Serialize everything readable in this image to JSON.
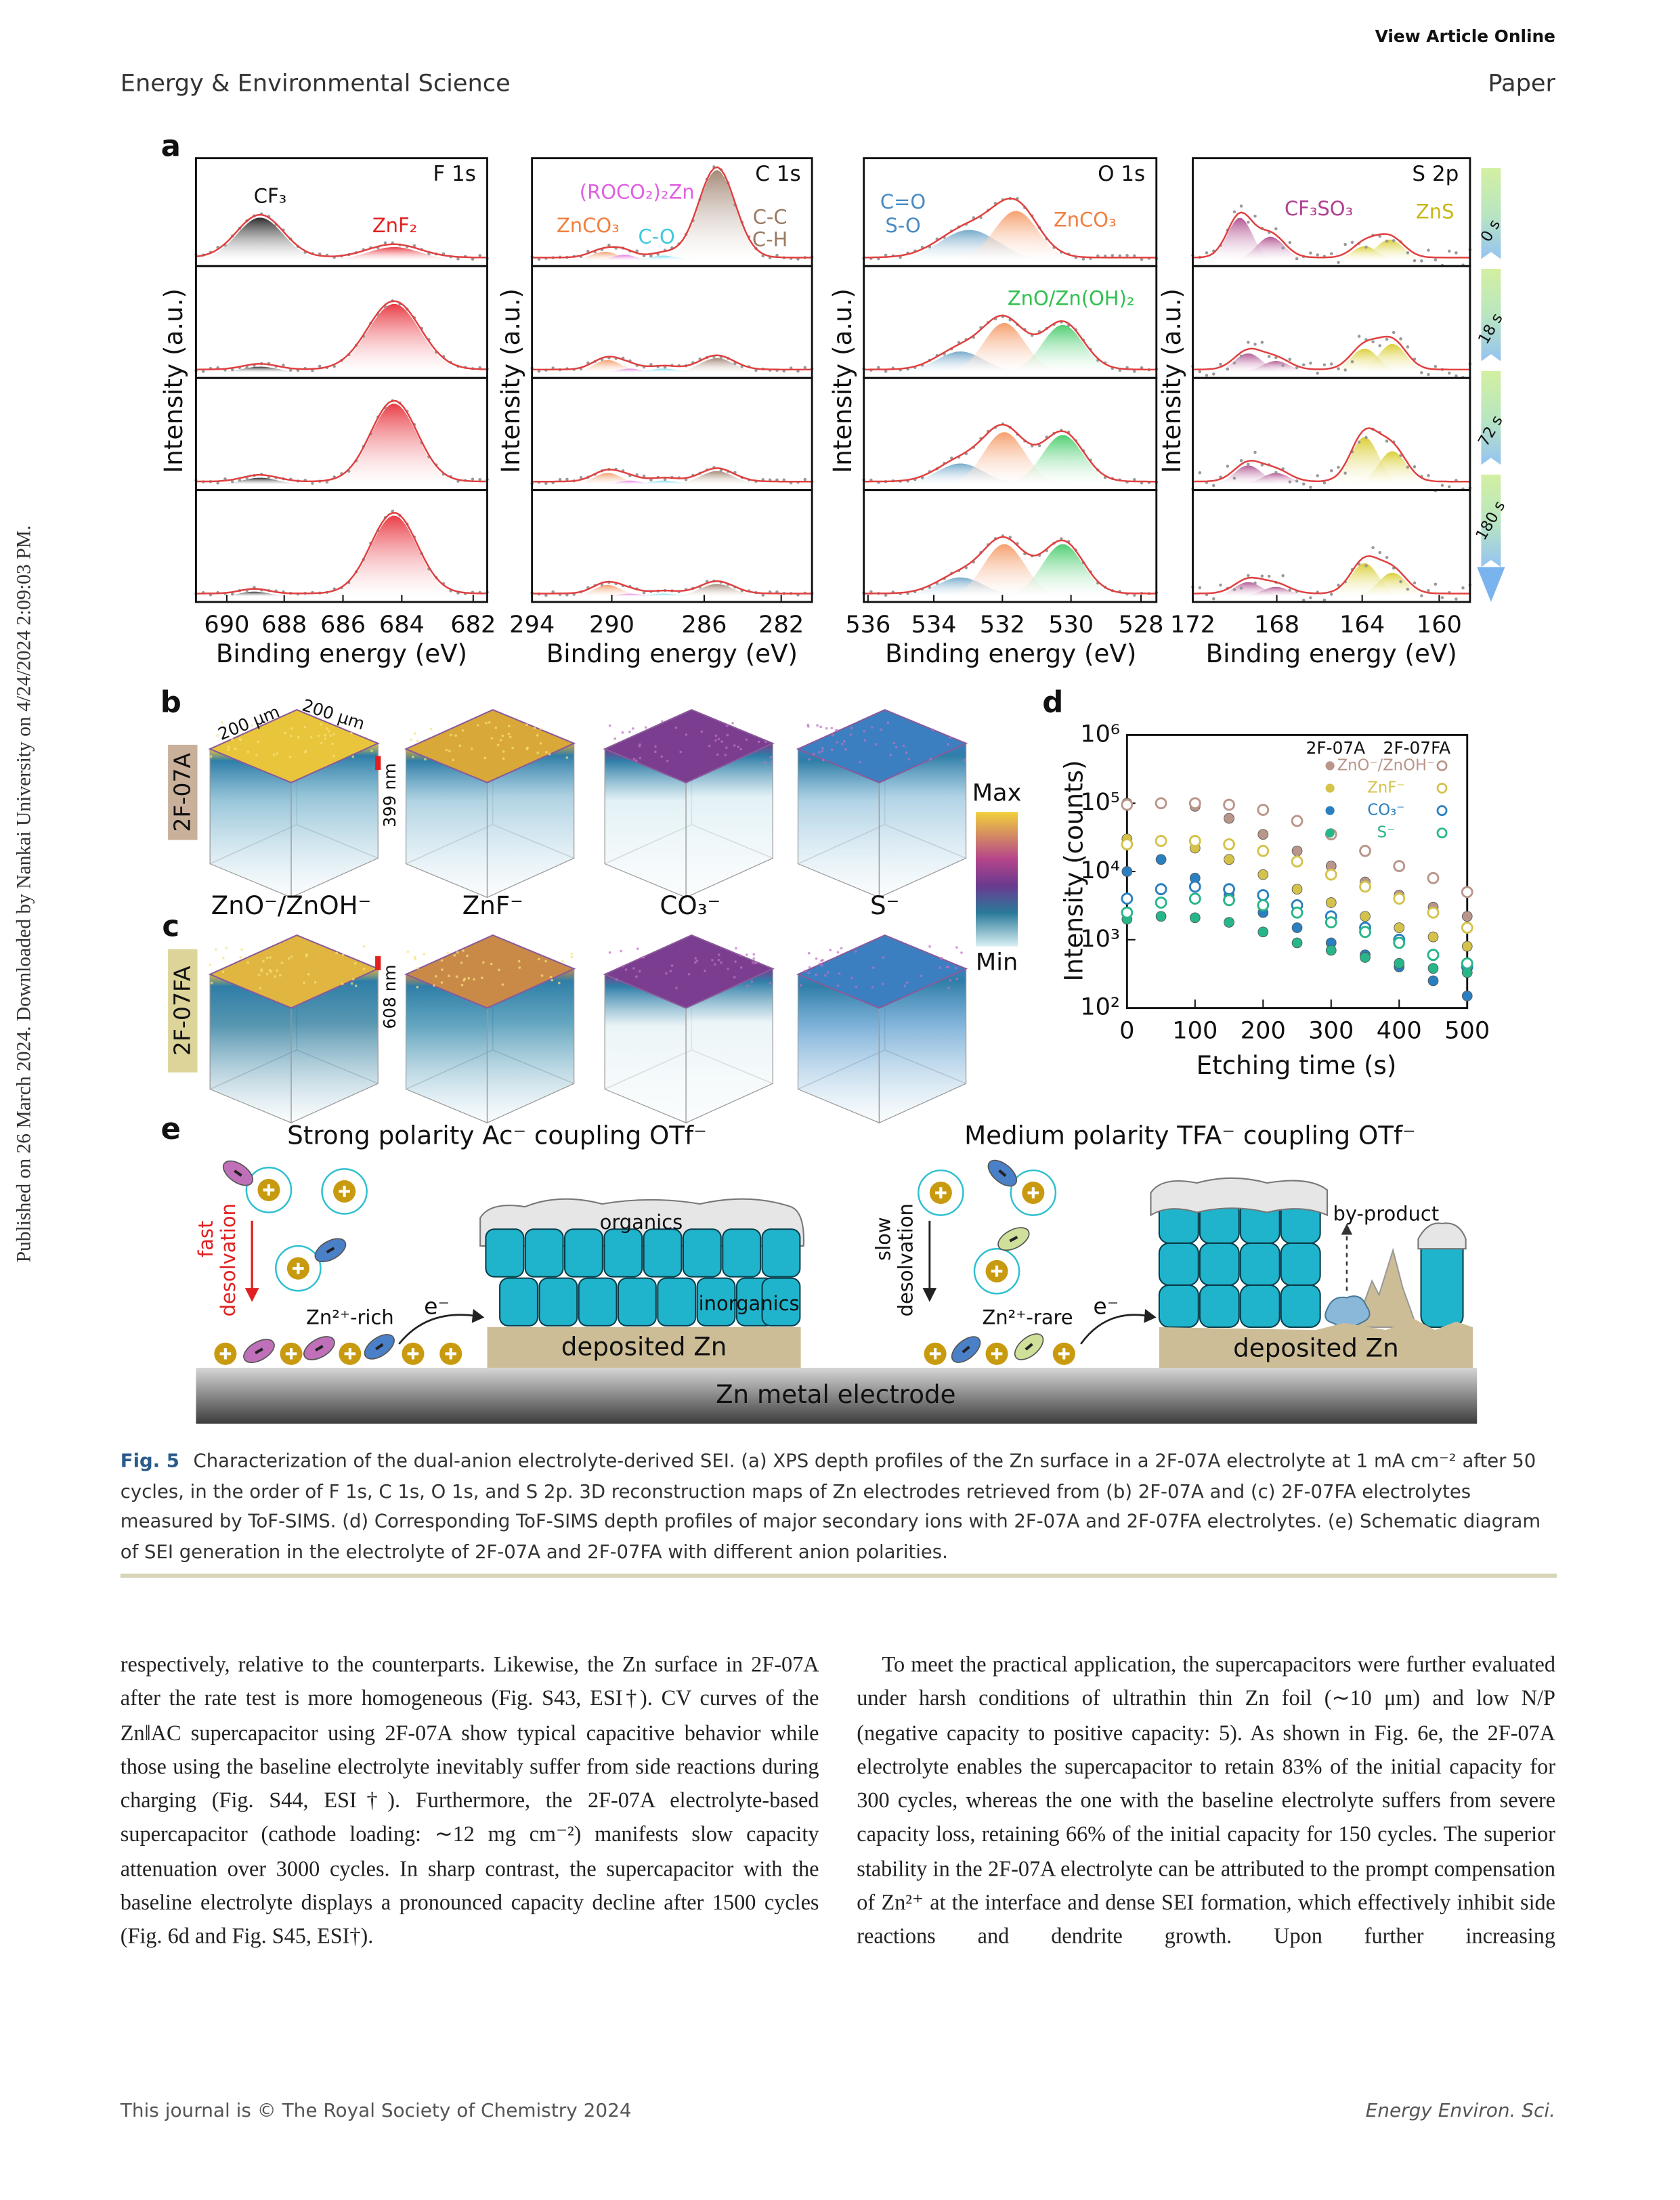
{
  "header": {
    "view_online": "View Article Online",
    "journal": "Energy & Environmental Science",
    "section": "Paper"
  },
  "side_note": "Published on 26 March 2024. Downloaded by Nankai University on 4/24/2024 2:09:03 PM.",
  "figure": {
    "panel_a": {
      "label": "a",
      "y_label": "Intensity (a.u.)",
      "x_label": "Binding energy (eV)",
      "spectra": [
        {
          "title": "F 1s",
          "xticks": [
            690,
            688,
            686,
            684,
            682
          ],
          "labels": [
            "CF₃",
            "ZnF₂"
          ]
        },
        {
          "title": "C 1s",
          "xticks": [
            294,
            290,
            286,
            282
          ],
          "labels": [
            "(ROCO₂)₂Zn",
            "ZnCO₃",
            "C-O",
            "C-C",
            "C-H"
          ]
        },
        {
          "title": "O 1s",
          "xticks": [
            536,
            534,
            532,
            530,
            528
          ],
          "labels": [
            "C=O",
            "S-O",
            "ZnCO₃",
            "ZnO/Zn(OH)₂"
          ]
        },
        {
          "title": "S 2p",
          "xticks": [
            172,
            168,
            164,
            160
          ],
          "labels": [
            "CF₃SO₃",
            "ZnS"
          ]
        }
      ],
      "times": [
        "0 s",
        "18 s",
        "72 s",
        "180 s"
      ]
    },
    "panel_bc": {
      "label_b": "b",
      "label_c": "c",
      "width": "200 μm",
      "depth": "200 μm",
      "thickness_b": "399 nm",
      "thickness_c": "608 nm",
      "electrolytes": [
        "2F-07A",
        "2F-07FA"
      ],
      "ions": [
        "ZnO⁻/ZnOH⁻",
        "ZnF⁻",
        "CO₃⁻",
        "S⁻"
      ],
      "colorbar_max": "Max",
      "colorbar_min": "Min"
    },
    "panel_d": {
      "label": "d",
      "type": "scatter",
      "x_label": "Etching time (s)",
      "y_label": "Intensity (counts)",
      "log_y": true,
      "xlim": [
        0,
        500
      ],
      "xticks": [
        0,
        100,
        200,
        300,
        400,
        500
      ],
      "ylim": [
        100,
        1000000
      ],
      "yticks": [
        {
          "value": 100,
          "label": "10²"
        },
        {
          "value": 1000,
          "label": "10³"
        },
        {
          "value": 10000,
          "label": "10⁴"
        },
        {
          "value": 100000,
          "label": "10⁵"
        },
        {
          "value": 1000000,
          "label": "10⁶"
        }
      ],
      "groups": [
        "2F-07A",
        "2F-07FA"
      ],
      "x": [
        0,
        50,
        100,
        150,
        200,
        250,
        300,
        350,
        400,
        450,
        500
      ],
      "series": [
        {
          "name": "ZnO⁻/ZnOH⁻",
          "color": "#b9958a",
          "2F-07A": [
            100000,
            100000,
            90000,
            60000,
            35000,
            20000,
            12000,
            7000,
            4500,
            3000,
            2200
          ],
          "2F-07FA": [
            95000,
            100000,
            100000,
            95000,
            80000,
            55000,
            35000,
            20000,
            12000,
            8000,
            5000
          ]
        },
        {
          "name": "ZnF⁻",
          "color": "#d4c24a",
          "2F-07A": [
            30000,
            28000,
            22000,
            15000,
            9000,
            5500,
            3500,
            2200,
            1500,
            1100,
            800
          ],
          "2F-07FA": [
            25000,
            28000,
            28000,
            25000,
            20000,
            14000,
            9000,
            6000,
            4000,
            2500,
            1500
          ]
        },
        {
          "name": "CO₃⁻",
          "color": "#2a7fc0",
          "2F-07A": [
            10000,
            15000,
            8000,
            4500,
            2500,
            1500,
            900,
            600,
            400,
            250,
            150
          ],
          "2F-07FA": [
            4000,
            5500,
            6000,
            5500,
            4500,
            3200,
            2200,
            1500,
            1000,
            600,
            400
          ]
        },
        {
          "name": "S⁻",
          "color": "#27b58a",
          "2F-07A": [
            2000,
            2200,
            2100,
            1800,
            1300,
            900,
            700,
            550,
            450,
            380,
            330
          ],
          "2F-07FA": [
            2500,
            3500,
            4000,
            3800,
            3200,
            2500,
            1800,
            1300,
            900,
            600,
            450
          ]
        }
      ]
    },
    "panel_e": {
      "label": "e",
      "left_title": "Strong polarity Ac⁻ coupling OTf⁻",
      "right_title": "Medium polarity TFA⁻ coupling OTf⁻",
      "fast": "fast",
      "slow": "slow",
      "desolvation": "desolvation",
      "zn_rich": "Zn²⁺-rich",
      "zn_rare": "Zn²⁺-rare",
      "electron": "e⁻",
      "organics": "organics",
      "inorganics": "inorganics",
      "by_product": "by-product",
      "deposited": "deposited Zn",
      "electrode": "Zn metal electrode"
    },
    "caption_label": "Fig. 5",
    "caption": "Characterization of the dual-anion electrolyte-derived SEI. (a) XPS depth profiles of the Zn surface in a 2F-07A electrolyte at 1 mA cm⁻² after 50 cycles, in the order of F 1s, C 1s, O 1s, and S 2p. 3D reconstruction maps of Zn electrodes retrieved from (b) 2F-07A and (c) 2F-07FA electrolytes measured by ToF-SIMS. (d) Corresponding ToF-SIMS depth profiles of major secondary ions with 2F-07A and 2F-07FA electrolytes. (e) Schematic diagram of SEI generation in the electrolyte of 2F-07A and 2F-07FA with different anion polarities."
  },
  "body": {
    "left": "respectively, relative to the counterparts. Likewise, the Zn surface in 2F-07A after the rate test is more homogeneous (Fig. S43, ESI†). CV curves of the Zn‖AC supercapacitor using 2F-07A show typical capacitive behavior while those using the baseline electrolyte inevitably suffer from side reactions during charging (Fig. S44, ESI†). Furthermore, the 2F-07A electrolyte-based supercapacitor (cathode loading: ∼12 mg cm⁻²) manifests slow capacity attenuation over 3000 cycles. In sharp contrast, the supercapacitor with the baseline electrolyte displays a pronounced capacity decline after 1500 cycles (Fig. 6d and Fig. S45, ESI†).",
    "right": "To meet the practical application, the supercapacitors were further evaluated under harsh conditions of ultrathin thin Zn foil (∼10 μm) and low N/P (negative capacity to positive capacity: 5). As shown in Fig. 6e, the 2F-07A electrolyte enables the supercapacitor to retain 83% of the initial capacity for 300 cycles, whereas the one with the baseline electrolyte suffers from severe capacity loss, retaining 66% of the initial capacity for 150 cycles. The superior stability in the 2F-07A electrolyte can be attributed to the prompt compensation of Zn²⁺ at the interface and dense SEI formation, which effectively inhibit side reactions and dendrite growth. Upon further increasing"
  },
  "footer": {
    "copyright": "This journal is © The Royal Society of Chemistry 2024",
    "journal_abbrev": "Energy Environ. Sci."
  }
}
